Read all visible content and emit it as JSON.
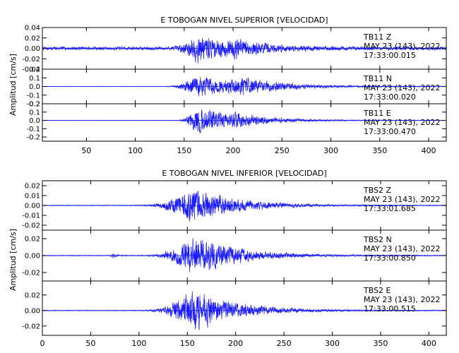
{
  "chart_data": [
    {
      "type": "line",
      "title": "E TOBOGAN NIVEL SUPERIOR [VELOCIDAD]",
      "ylabel": "Amplitud [cm/s]",
      "xlim": [
        5,
        418
      ],
      "x_ticks": [
        50,
        100,
        150,
        200,
        250,
        300,
        350,
        400
      ],
      "grid": false,
      "panels": [
        {
          "station": "TB11",
          "component": "Z",
          "date": "MAY 23 (143), 2022",
          "time": "17:33:00.015",
          "ylim": [
            -0.04,
            0.04
          ],
          "y_ticks": [
            0.04,
            0.02,
            0.0,
            -0.02,
            -0.04
          ],
          "y_tick_labels": [
            "0.04",
            "0.02",
            "0.00",
            "-0.02",
            "-0.04"
          ],
          "noise": 0.004,
          "events": [
            {
              "t": 165,
              "rise": 14,
              "decay": 45,
              "amp": 0.028
            },
            {
              "t": 205,
              "rise": 8,
              "decay": 20,
              "amp": 0.01
            }
          ]
        },
        {
          "station": "TB11",
          "component": "N",
          "date": "MAY 23 (143), 2022",
          "time": "17:33:00.020",
          "ylim": [
            -0.2,
            0.2
          ],
          "y_ticks": [
            0.2,
            0.1,
            0.0,
            -0.1,
            -0.2
          ],
          "y_tick_labels": [
            "0.2",
            "0.1",
            "0.0",
            "-0.1",
            "-0.2"
          ],
          "noise": 0.003,
          "events": [
            {
              "t": 163,
              "rise": 14,
              "decay": 60,
              "amp": 0.15
            },
            {
              "t": 210,
              "rise": 10,
              "decay": 30,
              "amp": 0.06
            }
          ]
        },
        {
          "station": "TB11",
          "component": "E",
          "date": "MAY 23 (143), 2022",
          "time": "17:33:00.470",
          "ylim": [
            -0.25,
            0.2
          ],
          "y_ticks": [
            0.2,
            0.1,
            0.0,
            -0.1,
            -0.2
          ],
          "y_tick_labels": [
            "0.2",
            "0.1",
            "0.0",
            "-0.1",
            "-0.2"
          ],
          "noise": 0.003,
          "events": [
            {
              "t": 165,
              "rise": 10,
              "decay": 40,
              "amp": 0.2
            },
            {
              "t": 205,
              "rise": 10,
              "decay": 30,
              "amp": 0.04
            }
          ]
        }
      ]
    },
    {
      "type": "line",
      "title": "E TOBOGAN NIVEL INFERIOR [VELOCIDAD]",
      "ylabel": "Amplitud [cm/s]",
      "xlim": [
        0,
        418
      ],
      "x_ticks": [
        0,
        50,
        100,
        150,
        200,
        250,
        300,
        350,
        400
      ],
      "grid": false,
      "panels": [
        {
          "station": "TBS2",
          "component": "Z",
          "date": "MAY 23 (143), 2022",
          "time": "17:33:01.685",
          "ylim": [
            -0.025,
            0.025
          ],
          "y_ticks": [
            0.02,
            0.01,
            0.0,
            -0.01,
            -0.02
          ],
          "y_tick_labels": [
            "0.02",
            "0.01",
            "0.00",
            "-0.01",
            "-0.02"
          ],
          "noise": 0.0005,
          "events": [
            {
              "t": 160,
              "rise": 28,
              "decay": 45,
              "amp": 0.02
            }
          ]
        },
        {
          "station": "TBS2",
          "component": "N",
          "date": "MAY 23 (143), 2022",
          "time": "17:33:00.850",
          "ylim": [
            -0.03,
            0.03
          ],
          "y_ticks": [
            0.02,
            0.0,
            -0.02
          ],
          "y_tick_labels": [
            "0.02",
            "0.00",
            "-0.02"
          ],
          "noise": 0.0006,
          "events": [
            {
              "t": 73,
              "rise": 2,
              "decay": 4,
              "amp": 0.003
            },
            {
              "t": 160,
              "rise": 25,
              "decay": 45,
              "amp": 0.026
            }
          ]
        },
        {
          "station": "TBS2",
          "component": "E",
          "date": "MAY 23 (143), 2022",
          "time": "17:33:00.515",
          "ylim": [
            -0.032,
            0.038
          ],
          "y_ticks": [
            0.02,
            0.0,
            -0.02
          ],
          "y_tick_labels": [
            "0.02",
            "0.00",
            "-0.02"
          ],
          "noise": 0.0006,
          "events": [
            {
              "t": 160,
              "rise": 25,
              "decay": 45,
              "amp": 0.03
            }
          ]
        }
      ]
    }
  ]
}
